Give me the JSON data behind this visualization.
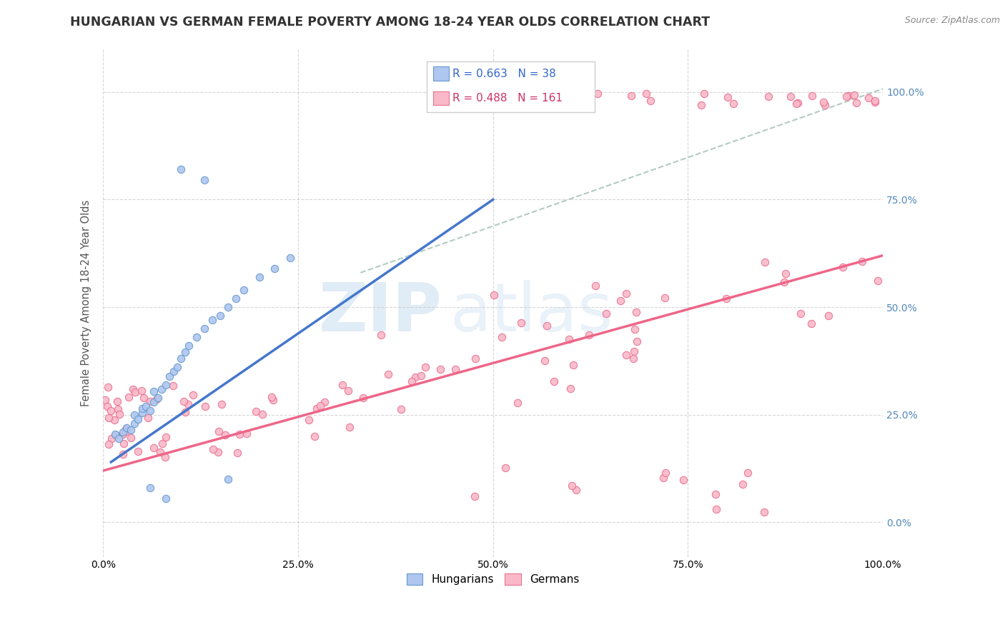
{
  "title": "HUNGARIAN VS GERMAN FEMALE POVERTY AMONG 18-24 YEAR OLDS CORRELATION CHART",
  "source": "Source: ZipAtlas.com",
  "ylabel": "Female Poverty Among 18-24 Year Olds",
  "hungarian_color": "#aec6f0",
  "hungarian_edge": "#6699cc",
  "german_color": "#f9b8c8",
  "german_edge": "#e87090",
  "line_blue": "#4477cc",
  "line_pink": "#ee6688",
  "line_dashed": "#99bbaa",
  "legend_R_hungarian": "R = 0.663",
  "legend_N_hungarian": "N = 38",
  "legend_R_german": "R = 0.488",
  "legend_N_german": "N = 161",
  "watermark_zip": "ZIP",
  "watermark_atlas": "atlas",
  "background_color": "#ffffff",
  "grid_color": "#cccccc",
  "title_color": "#333333",
  "axis_label_color": "#555555"
}
